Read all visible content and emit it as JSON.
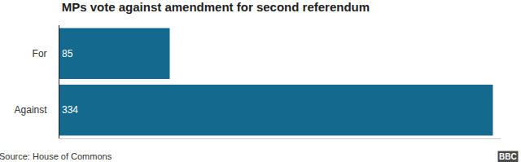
{
  "chart_data": {
    "type": "bar",
    "orientation": "horizontal",
    "title": "MPs vote against amendment for second referendum",
    "categories": [
      "For",
      "Against"
    ],
    "values": [
      85,
      334
    ],
    "color": "#146a8e",
    "xlim": [
      0,
      340
    ],
    "xticks": [],
    "grid": false,
    "data_labels": true,
    "tick_labels": "y",
    "annotations": [
      "Source: House of Commons",
      "BBC"
    ]
  }
}
